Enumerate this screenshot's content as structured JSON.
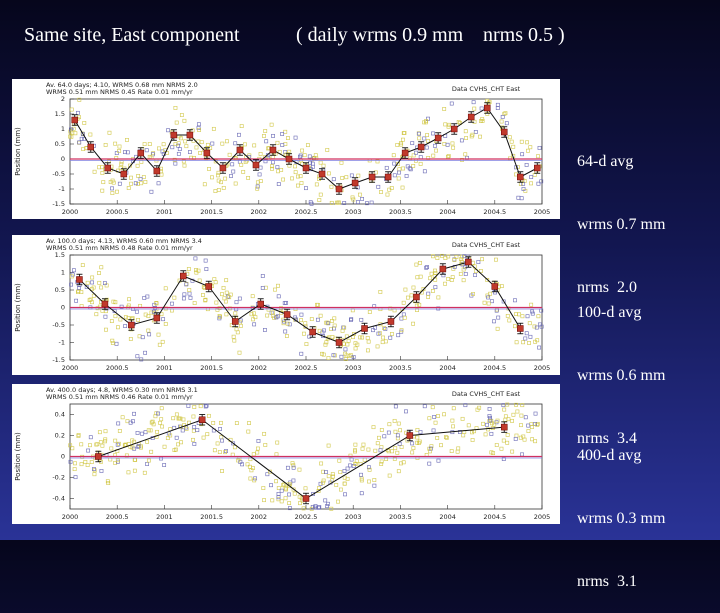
{
  "title": {
    "left": "Same site,  East component",
    "middle": "( daily wrms 0.9 mm",
    "right": "nrms 0.5 )"
  },
  "panels": [
    {
      "header_left": "Av. 64.0 days; 4.10, WRMS  0.68 mm NRMS  2.0",
      "header_left2": "WRMS 0.51 mm NRMS 0.45 Rate  0.01 mm/yr",
      "header_right": "Data CVHS_CHT East",
      "ylabel": "Position (mm)",
      "yticks": [
        "2",
        "1.5",
        "1",
        "0.5",
        "0",
        "-0.5",
        "-1",
        "-1.5"
      ],
      "xticks": [
        "2000",
        "2000.5",
        "2001",
        "2001.5",
        "2002",
        "2002.5",
        "2003",
        "2003.5",
        "2004",
        "2004.5",
        "2005"
      ],
      "side_lines": [
        "64-d avg",
        "wrms 0.7 mm",
        "nrms  2.0"
      ]
    },
    {
      "header_left": "Av. 100.0 days; 4.13, WRMS  0.60 mm NRMS  3.4",
      "header_left2": "WRMS 0.51 mm NRMS 0.48 Rate  0.01 mm/yr",
      "header_right": "Data CVHS_CHT East",
      "ylabel": "Position (mm)",
      "yticks": [
        "1.5",
        "1",
        "0.5",
        "0",
        "-0.5",
        "-1",
        "-1.5"
      ],
      "xticks": [
        "2000",
        "2000.5",
        "2001",
        "2001.5",
        "2002",
        "2002.5",
        "2003",
        "2003.5",
        "2004",
        "2004.5",
        "2005"
      ],
      "side_lines": [
        "100-d avg",
        "wrms 0.6 mm",
        "nrms  3.4"
      ]
    },
    {
      "header_left": "Av. 400.0 days; 4.8, WRMS  0.30 mm NRMS  3.1",
      "header_left2": "WRMS 0.51 mm NRMS 0.46 Rate  0.01 mm/yr",
      "header_right": "Data CVHS_CHT East",
      "ylabel": "Position (mm)",
      "yticks": [
        "0.4",
        "0.2",
        "0",
        "-0.2",
        "-0.4"
      ],
      "xticks": [
        "2000",
        "2000.5",
        "2001",
        "2001.5",
        "2002",
        "2002.5",
        "2003",
        "2003.5",
        "2004",
        "2004.5",
        "2005"
      ],
      "side_lines": [
        "400-d avg",
        "wrms 0.3 mm",
        "nrms  3.1"
      ]
    }
  ],
  "chart_data": [
    {
      "type": "scatter",
      "xlim": [
        2000,
        2005
      ],
      "ylim": [
        -1.5,
        2
      ],
      "averages_x": [
        2000.05,
        2000.22,
        2000.4,
        2000.57,
        2000.75,
        2000.92,
        2001.1,
        2001.27,
        2001.45,
        2001.62,
        2001.8,
        2001.97,
        2002.15,
        2002.32,
        2002.5,
        2002.67,
        2002.85,
        2003.02,
        2003.2,
        2003.37,
        2003.55,
        2003.72,
        2003.9,
        2004.07,
        2004.25,
        2004.42,
        2004.6,
        2004.77,
        2004.95
      ],
      "averages_y": [
        1.3,
        0.4,
        -0.3,
        -0.5,
        0.2,
        -0.4,
        0.8,
        0.8,
        0.2,
        -0.3,
        0.3,
        -0.2,
        0.3,
        0.0,
        -0.3,
        -0.5,
        -1.0,
        -0.8,
        -0.6,
        -0.6,
        0.2,
        0.4,
        0.7,
        1.0,
        1.4,
        1.7,
        0.9,
        -0.6,
        -0.3
      ],
      "mean_line": 0
    },
    {
      "type": "scatter",
      "xlim": [
        2000,
        2005
      ],
      "ylim": [
        -1.5,
        1.5
      ],
      "averages_x": [
        2000.1,
        2000.37,
        2000.65,
        2000.92,
        2001.2,
        2001.47,
        2001.75,
        2002.02,
        2002.3,
        2002.57,
        2002.85,
        2003.12,
        2003.4,
        2003.67,
        2003.95,
        2004.22,
        2004.5,
        2004.77
      ],
      "averages_y": [
        0.8,
        0.1,
        -0.5,
        -0.3,
        0.9,
        0.6,
        -0.4,
        0.1,
        -0.2,
        -0.7,
        -1.0,
        -0.6,
        -0.4,
        0.3,
        1.1,
        1.3,
        0.6,
        -0.6
      ],
      "mean_line": 0
    },
    {
      "type": "scatter",
      "xlim": [
        2000,
        2005
      ],
      "ylim": [
        -0.5,
        0.5
      ],
      "averages_x": [
        2000.3,
        2001.4,
        2002.5,
        2003.6,
        2004.6
      ],
      "averages_y": [
        0.0,
        0.35,
        -0.4,
        0.2,
        0.28
      ],
      "mean_line": 0
    }
  ]
}
